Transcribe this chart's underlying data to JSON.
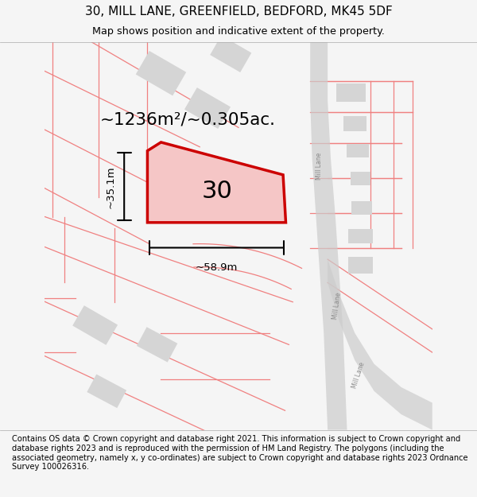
{
  "title": "30, MILL LANE, GREENFIELD, BEDFORD, MK45 5DF",
  "subtitle": "Map shows position and indicative extent of the property.",
  "footer": "Contains OS data © Crown copyright and database right 2021. This information is subject to Crown copyright and database rights 2023 and is reproduced with the permission of HM Land Registry. The polygons (including the associated geometry, namely x, y co-ordinates) are subject to Crown copyright and database rights 2023 Ordnance Survey 100026316.",
  "background_color": "#f5f5f5",
  "map_bg": "#ffffff",
  "area_label": "~1236m²/~0.305ac.",
  "property_number": "30",
  "width_label": "~58.9m",
  "height_label": "~35.1m",
  "property_color": "#cc0000",
  "property_fill": "#f5c6c6",
  "road_color": "#cccccc",
  "building_color": "#d0d0d0",
  "plot_line_color": "#f08080"
}
